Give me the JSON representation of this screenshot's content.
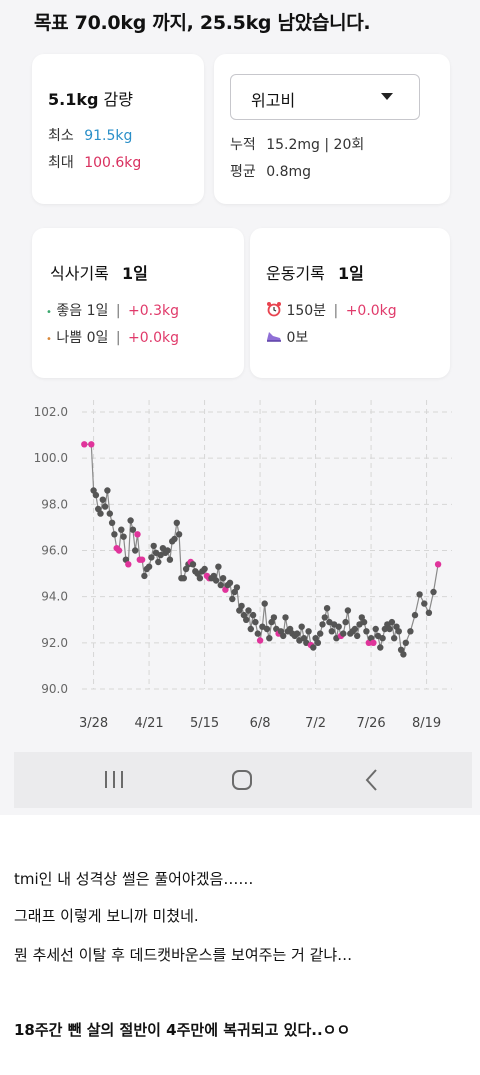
{
  "goal": {
    "text": "목표 70.0kg 까지, 25.5kg 남았습니다."
  },
  "weight_card": {
    "loss_value": "5.1kg",
    "loss_suffix": "감량",
    "min_label": "최소",
    "min_value": "91.5kg",
    "max_label": "최대",
    "max_value": "100.6kg",
    "min_color": "#2a8fc8",
    "max_color": "#d9305f"
  },
  "medication_card": {
    "selected": "위고비",
    "total_label": "누적",
    "total_value": "15.2mg | 20회",
    "avg_label": "평균",
    "avg_value": "0.8mg"
  },
  "meal_card": {
    "title": "식사기록",
    "title_value": "1일",
    "good_label": "좋음",
    "good_value": "1일",
    "good_delta": "+0.3kg",
    "bad_label": "나쁨",
    "bad_value": "0일",
    "bad_delta": "+0.0kg"
  },
  "exercise_card": {
    "title": "운동기록",
    "title_value": "1일",
    "time_icon": "alarm-clock-icon",
    "time_value": "150분",
    "time_delta": "+0.0kg",
    "steps_icon": "sneaker-icon",
    "steps_value": "0보"
  },
  "chart_data": {
    "type": "line",
    "y_ticks": [
      "102.0",
      "100.0",
      "98.0",
      "96.0",
      "94.0",
      "92.0",
      "90.0"
    ],
    "ylim": [
      90,
      102
    ],
    "x_ticks": [
      "3/28",
      "4/21",
      "5/15",
      "6/8",
      "7/2",
      "7/26",
      "8/19"
    ],
    "x_tick_days": [
      0,
      24,
      48,
      72,
      96,
      120,
      144
    ],
    "xlim": [
      -5,
      155
    ],
    "grid": true,
    "line_color": "#8a8a8a",
    "dot_color": "#555555",
    "highlight_color": "#e0349b",
    "points": [
      {
        "d": -4,
        "y": 100.6,
        "h": true
      },
      {
        "d": -1,
        "y": 100.6,
        "h": true
      },
      {
        "d": 0,
        "y": 98.6
      },
      {
        "d": 1,
        "y": 98.4
      },
      {
        "d": 2,
        "y": 97.8
      },
      {
        "d": 3,
        "y": 97.6
      },
      {
        "d": 4,
        "y": 98.2
      },
      {
        "d": 5,
        "y": 97.9
      },
      {
        "d": 6,
        "y": 98.6
      },
      {
        "d": 7,
        "y": 97.6
      },
      {
        "d": 8,
        "y": 97.2
      },
      {
        "d": 9,
        "y": 96.7
      },
      {
        "d": 10,
        "y": 96.1,
        "h": true
      },
      {
        "d": 11,
        "y": 96.0,
        "h": true
      },
      {
        "d": 12,
        "y": 96.9
      },
      {
        "d": 13,
        "y": 96.6
      },
      {
        "d": 14,
        "y": 95.6
      },
      {
        "d": 15,
        "y": 95.4,
        "h": true
      },
      {
        "d": 16,
        "y": 97.3
      },
      {
        "d": 17,
        "y": 96.9
      },
      {
        "d": 18,
        "y": 96.0
      },
      {
        "d": 19,
        "y": 96.7,
        "h": true
      },
      {
        "d": 20,
        "y": 95.6,
        "h": true
      },
      {
        "d": 21,
        "y": 95.6,
        "h": true
      },
      {
        "d": 22,
        "y": 94.9
      },
      {
        "d": 23,
        "y": 95.2
      },
      {
        "d": 24,
        "y": 95.3
      },
      {
        "d": 25,
        "y": 95.7
      },
      {
        "d": 26,
        "y": 96.2
      },
      {
        "d": 27,
        "y": 95.9
      },
      {
        "d": 28,
        "y": 95.5
      },
      {
        "d": 29,
        "y": 95.8
      },
      {
        "d": 30,
        "y": 96.1
      },
      {
        "d": 31,
        "y": 95.9
      },
      {
        "d": 32,
        "y": 96.0
      },
      {
        "d": 33,
        "y": 95.6
      },
      {
        "d": 34,
        "y": 96.4
      },
      {
        "d": 35,
        "y": 96.5
      },
      {
        "d": 36,
        "y": 97.2
      },
      {
        "d": 37,
        "y": 96.7
      },
      {
        "d": 38,
        "y": 94.8
      },
      {
        "d": 39,
        "y": 94.8
      },
      {
        "d": 40,
        "y": 95.2
      },
      {
        "d": 41,
        "y": 95.4
      },
      {
        "d": 42,
        "y": 95.5,
        "h": true
      },
      {
        "d": 43,
        "y": 95.4
      },
      {
        "d": 44,
        "y": 95.1
      },
      {
        "d": 45,
        "y": 95.0
      },
      {
        "d": 46,
        "y": 94.8
      },
      {
        "d": 47,
        "y": 95.1
      },
      {
        "d": 48,
        "y": 95.2
      },
      {
        "d": 49,
        "y": 94.9,
        "h": true
      },
      {
        "d": 50,
        "y": 94.8,
        "h": true
      },
      {
        "d": 51,
        "y": 94.8
      },
      {
        "d": 52,
        "y": 94.9
      },
      {
        "d": 53,
        "y": 94.7
      },
      {
        "d": 54,
        "y": 95.3
      },
      {
        "d": 55,
        "y": 94.5
      },
      {
        "d": 56,
        "y": 94.8
      },
      {
        "d": 57,
        "y": 94.3,
        "h": true
      },
      {
        "d": 58,
        "y": 94.5
      },
      {
        "d": 59,
        "y": 94.6
      },
      {
        "d": 60,
        "y": 93.9
      },
      {
        "d": 61,
        "y": 94.2
      },
      {
        "d": 62,
        "y": 94.4
      },
      {
        "d": 63,
        "y": 93.4
      },
      {
        "d": 64,
        "y": 93.6
      },
      {
        "d": 65,
        "y": 93.2
      },
      {
        "d": 66,
        "y": 93.0
      },
      {
        "d": 67,
        "y": 93.4
      },
      {
        "d": 68,
        "y": 92.6
      },
      {
        "d": 69,
        "y": 93.2
      },
      {
        "d": 70,
        "y": 92.9
      },
      {
        "d": 71,
        "y": 92.4
      },
      {
        "d": 72,
        "y": 92.1,
        "h": true
      },
      {
        "d": 73,
        "y": 92.7
      },
      {
        "d": 74,
        "y": 93.7
      },
      {
        "d": 75,
        "y": 92.6
      },
      {
        "d": 76,
        "y": 92.2
      },
      {
        "d": 77,
        "y": 92.9
      },
      {
        "d": 78,
        "y": 93.1
      },
      {
        "d": 79,
        "y": 92.6
      },
      {
        "d": 80,
        "y": 92.4,
        "h": true
      },
      {
        "d": 81,
        "y": 92.5
      },
      {
        "d": 82,
        "y": 92.3
      },
      {
        "d": 83,
        "y": 93.1
      },
      {
        "d": 84,
        "y": 92.5
      },
      {
        "d": 85,
        "y": 92.6
      },
      {
        "d": 86,
        "y": 92.4
      },
      {
        "d": 87,
        "y": 92.3
      },
      {
        "d": 88,
        "y": 92.4
      },
      {
        "d": 89,
        "y": 92.1
      },
      {
        "d": 90,
        "y": 92.7
      },
      {
        "d": 91,
        "y": 92.2
      },
      {
        "d": 92,
        "y": 92.0
      },
      {
        "d": 93,
        "y": 92.5
      },
      {
        "d": 94,
        "y": 91.9,
        "h": true
      },
      {
        "d": 95,
        "y": 91.8
      },
      {
        "d": 96,
        "y": 92.2
      },
      {
        "d": 97,
        "y": 92.0
      },
      {
        "d": 98,
        "y": 92.4
      },
      {
        "d": 99,
        "y": 92.8
      },
      {
        "d": 100,
        "y": 93.1
      },
      {
        "d": 101,
        "y": 93.5
      },
      {
        "d": 102,
        "y": 92.9
      },
      {
        "d": 103,
        "y": 92.5
      },
      {
        "d": 104,
        "y": 92.8
      },
      {
        "d": 105,
        "y": 92.2
      },
      {
        "d": 106,
        "y": 92.7
      },
      {
        "d": 107,
        "y": 92.3,
        "h": true
      },
      {
        "d": 108,
        "y": 92.4
      },
      {
        "d": 109,
        "y": 92.9
      },
      {
        "d": 110,
        "y": 93.4
      },
      {
        "d": 111,
        "y": 92.4
      },
      {
        "d": 112,
        "y": 92.5
      },
      {
        "d": 113,
        "y": 92.6
      },
      {
        "d": 114,
        "y": 92.3
      },
      {
        "d": 115,
        "y": 92.8
      },
      {
        "d": 116,
        "y": 93.1
      },
      {
        "d": 117,
        "y": 92.9
      },
      {
        "d": 118,
        "y": 92.5
      },
      {
        "d": 119,
        "y": 92.0,
        "h": true
      },
      {
        "d": 120,
        "y": 92.2
      },
      {
        "d": 121,
        "y": 92.0,
        "h": true
      },
      {
        "d": 122,
        "y": 92.6
      },
      {
        "d": 123,
        "y": 92.3
      },
      {
        "d": 124,
        "y": 91.8
      },
      {
        "d": 125,
        "y": 92.2
      },
      {
        "d": 126,
        "y": 92.6
      },
      {
        "d": 127,
        "y": 92.8
      },
      {
        "d": 128,
        "y": 92.6
      },
      {
        "d": 129,
        "y": 92.9
      },
      {
        "d": 130,
        "y": 92.2
      },
      {
        "d": 131,
        "y": 92.7
      },
      {
        "d": 132,
        "y": 92.5
      },
      {
        "d": 133,
        "y": 91.7
      },
      {
        "d": 134,
        "y": 91.5
      },
      {
        "d": 135,
        "y": 92.0
      },
      {
        "d": 137,
        "y": 92.5
      },
      {
        "d": 139,
        "y": 93.2
      },
      {
        "d": 141,
        "y": 94.1
      },
      {
        "d": 143,
        "y": 93.7
      },
      {
        "d": 145,
        "y": 93.3
      },
      {
        "d": 147,
        "y": 94.2
      },
      {
        "d": 149,
        "y": 95.4,
        "h": true
      }
    ]
  },
  "nav": {
    "recent_icon": "recent-apps-icon",
    "home_icon": "home-icon",
    "back_icon": "back-icon"
  },
  "post": {
    "line1": "tmi인 내 성격상 썰은 풀어야겠음……",
    "line2": "그래프 이렇게 보니까 미쳤네.",
    "line3": "뭔 추세선 이탈 후 데드캣바운스를 보여주는 거 같냐…",
    "line4": "18주간 뺀 살의 절반이 4주만에 복귀되고 있다..ㅇㅇ"
  }
}
